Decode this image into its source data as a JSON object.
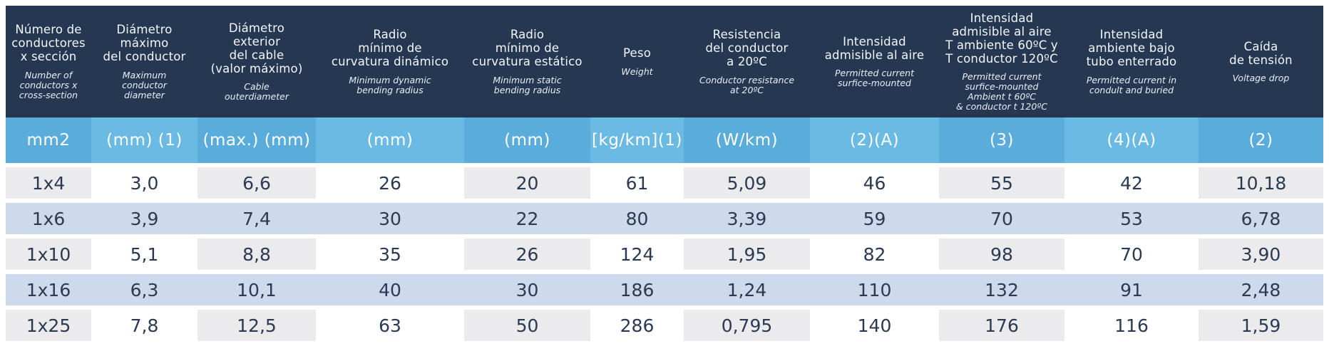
{
  "colors": {
    "header_bg": "#263751",
    "unit_cell_odd": "#5aacdb",
    "unit_cell_even": "#6bbae4",
    "row_alt_cell": "#ebebee",
    "row_blue": "#cddaec",
    "data_text": "#2b3a52",
    "header_text": "#f3f7fb"
  },
  "table": {
    "columns": [
      {
        "es": "Número de\nconductores\nx sección",
        "en": "Number of\nconductors x\ncross-section",
        "unit": "mm2"
      },
      {
        "es": "Diámetro\nmáximo\ndel conductor",
        "en": "Maximum\nconductor\ndiameter",
        "unit": "(mm) (1)"
      },
      {
        "es": "Diámetro\nexterior\ndel cable\n(valor máximo)",
        "en": "Cable\nouterdiameter",
        "unit": "(max.) (mm)"
      },
      {
        "es": "Radio\nmínimo de\ncurvatura dinámico",
        "en": "Minimum dynamic\nbending radius",
        "unit": "(mm)"
      },
      {
        "es": "Radio\nmínimo de\ncurvatura estático",
        "en": "Minimum static\nbending radius",
        "unit": "(mm)"
      },
      {
        "es": "Peso",
        "en": "Weight",
        "unit": "[kg/km](1)"
      },
      {
        "es": "Resistencia\ndel conductor\na 20ºC",
        "en": "Conductor resistance\nat 20ºC",
        "unit": "(W/km)"
      },
      {
        "es": "Intensidad\nadmisible al aire",
        "en": "Permitted current\nsurfice-mounted",
        "unit": "(2)(A)"
      },
      {
        "es": "Intensidad\nadmisible al aire\nT ambiente 60ºC y\nT conductor 120ºC",
        "en": "Permitted current\nsurfice-mounted\nAmbient t 60ºC\n& conductor t 120ºC",
        "unit": "(3)"
      },
      {
        "es": "Intensidad\nambiente bajo\ntubo enterrado",
        "en": "Permitted current in\ncondult and buried",
        "unit": "(4)(A)"
      },
      {
        "es": "Caída\nde tensión",
        "en": "Voltage drop",
        "unit": "(2)"
      }
    ],
    "rows": [
      {
        "cells": [
          "1x4",
          "3,0",
          "6,6",
          "26",
          "20",
          "61",
          "5,09",
          "46",
          "55",
          "42",
          "10,18"
        ]
      },
      {
        "cells": [
          "1x6",
          "3,9",
          "7,4",
          "30",
          "22",
          "80",
          "3,39",
          "59",
          "70",
          "53",
          "6,78"
        ]
      },
      {
        "cells": [
          "1x10",
          "5,1",
          "8,8",
          "35",
          "26",
          "124",
          "1,95",
          "82",
          "98",
          "70",
          "3,90"
        ]
      },
      {
        "cells": [
          "1x16",
          "6,3",
          "10,1",
          "40",
          "30",
          "186",
          "1,24",
          "110",
          "132",
          "91",
          "2,48"
        ]
      },
      {
        "cells": [
          "1x25",
          "7,8",
          "12,5",
          "63",
          "50",
          "286",
          "0,795",
          "140",
          "176",
          "116",
          "1,59"
        ]
      }
    ]
  }
}
